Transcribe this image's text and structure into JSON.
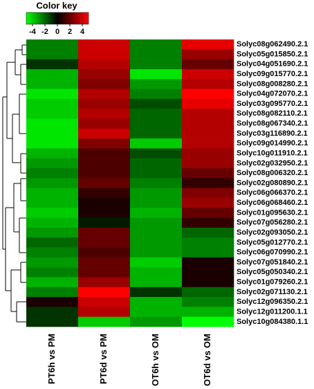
{
  "chart_data": {
    "type": "heatmap",
    "key_title": "Color key",
    "key_lim": [
      -5,
      5
    ],
    "key_ticks": [
      -4,
      -2,
      0,
      2,
      4
    ],
    "colors": {
      "low": "#00ff00",
      "mid": "#000000",
      "high": "#ff0000"
    },
    "columns": [
      "PT6h vs PM",
      "PT6d vs PM",
      "OT6h vs OM",
      "OT6d vs OM"
    ],
    "rows": [
      "Solyc08g062490.2.1",
      "Solyc05g015850.2.1",
      "Solyc04g051690.2.1",
      "Solyc09g015770.2.1",
      "Solyc08g008280.2.1",
      "Solyc04g072070.2.1",
      "Solyc03g095770.2.1",
      "Solyc08g082110.2.1",
      "Solyc08g067340.2.1",
      "Solyc03g116890.2.1",
      "Solyc09g014990.2.1",
      "Solyc10g011910.2.1",
      "Solyc02g032950.2.1",
      "Solyc08g006320.2.1",
      "Solyc02g080890.2.1",
      "Solyc06g066370.2.1",
      "Solyc06g068460.2.1",
      "Solyc01g095630.2.1",
      "Solyc07g056280.2.1",
      "Solyc02g093050.2.1",
      "Solyc05g012770.2.1",
      "Solyc06g070990.2.1",
      "Solyc07g051840.2.1",
      "Solyc05g050340.2.1",
      "Solyc01g079260.2.1",
      "Solyc02g071130.2.1",
      "Solyc12g096350.2.1",
      "Solyc12g011200.1.1",
      "Solyc10g084380.1.1"
    ],
    "values": [
      [
        -2.5,
        4,
        -2.5,
        4.5
      ],
      [
        -2.5,
        4,
        -2.5,
        3
      ],
      [
        -1,
        3.5,
        -2.5,
        2
      ],
      [
        -3.5,
        3,
        -4.5,
        4
      ],
      [
        -3.5,
        2.5,
        -3,
        3.5
      ],
      [
        -4.5,
        3.5,
        -2.5,
        5
      ],
      [
        -4,
        3,
        -1.5,
        4.5
      ],
      [
        -4,
        3.5,
        -2,
        3.5
      ],
      [
        -4.5,
        3,
        -2,
        3.5
      ],
      [
        -4.5,
        4,
        -2,
        3.5
      ],
      [
        -4.5,
        2.5,
        -4,
        3.5
      ],
      [
        -3.5,
        1.5,
        -1.5,
        3
      ],
      [
        -3,
        1.5,
        -2,
        3
      ],
      [
        -2.5,
        1.5,
        -2,
        2
      ],
      [
        -3,
        2,
        -2.5,
        1
      ],
      [
        -3.5,
        1,
        -3,
        2.5
      ],
      [
        -3.5,
        0.5,
        -3,
        3
      ],
      [
        -4,
        0.5,
        -3.5,
        2
      ],
      [
        -3.5,
        -0.5,
        -3,
        1
      ],
      [
        -3,
        2,
        -3,
        -2
      ],
      [
        -2,
        2,
        -3,
        -2.5
      ],
      [
        -2.5,
        1.5,
        -3,
        -2.5
      ],
      [
        -3,
        2,
        -4,
        0.5
      ],
      [
        -2.5,
        2,
        -3.5,
        0.5
      ],
      [
        -3.5,
        3,
        -3.5,
        0.5
      ],
      [
        -2.5,
        5,
        -1,
        -2
      ],
      [
        0.5,
        4,
        -3.5,
        -2.5
      ],
      [
        -1,
        3.5,
        -3.5,
        -3.5
      ],
      [
        -1,
        -4,
        -3,
        -5
      ]
    ]
  }
}
